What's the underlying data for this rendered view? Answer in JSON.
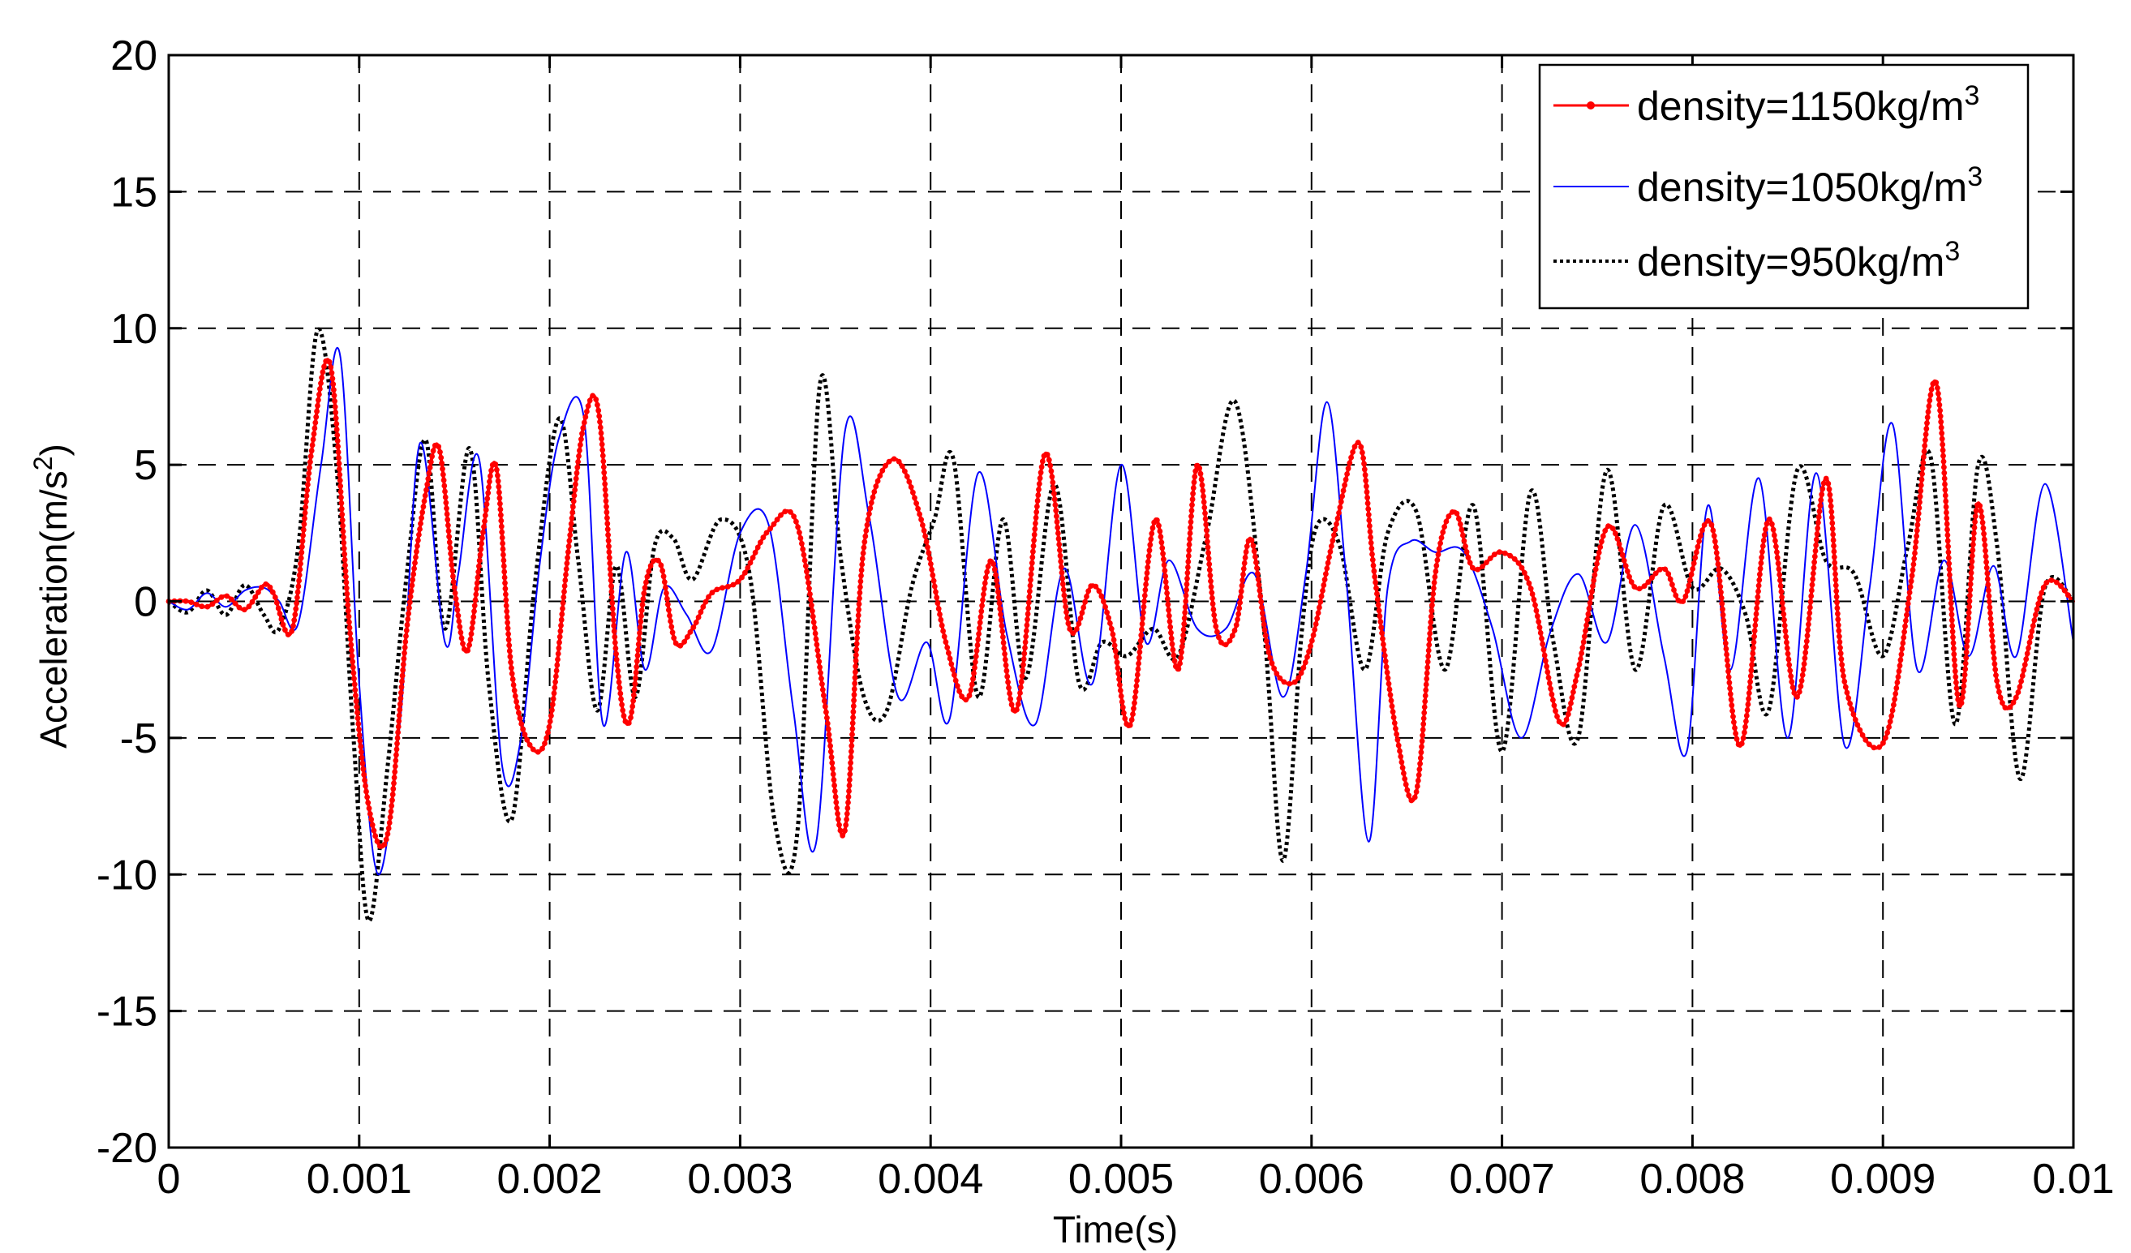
{
  "chart_data": {
    "type": "line",
    "xlabel": "Time(s)",
    "ylabel": "Acceleration(m/s",
    "ylabel_sup": "2",
    "ylabel_end": ")",
    "xlim": [
      0,
      0.01
    ],
    "ylim": [
      -20,
      20
    ],
    "grid": true,
    "legend_position": "top-right",
    "x_ticks": [
      0,
      0.001,
      0.002,
      0.003,
      0.004,
      0.005,
      0.006,
      0.007,
      0.008,
      0.009,
      0.01
    ],
    "x_tick_labels": [
      "0",
      "0.001",
      "0.002",
      "0.003",
      "0.004",
      "0.005",
      "0.006",
      "0.007",
      "0.008",
      "0.009",
      "0.01"
    ],
    "y_ticks": [
      -20,
      -15,
      -10,
      -5,
      0,
      5,
      10,
      15,
      20
    ],
    "y_tick_labels": [
      "-20",
      "-15",
      "-10",
      "-5",
      "0",
      "5",
      "10",
      "15",
      "20"
    ],
    "series": [
      {
        "name": "density=1150kg/m",
        "name_sup": "3",
        "color": "#ff0000",
        "style": "solid-markers",
        "x": [
          0,
          0.0001,
          0.0002,
          0.0003,
          0.0004,
          0.0005,
          0.00055,
          0.00065,
          0.00075,
          0.00085,
          0.00095,
          0.00105,
          0.00115,
          0.00125,
          0.00135,
          0.00142,
          0.0015,
          0.00157,
          0.00165,
          0.00172,
          0.0018,
          0.0019,
          0.002,
          0.0021,
          0.00218,
          0.00226,
          0.00235,
          0.00242,
          0.0025,
          0.00258,
          0.00266,
          0.00275,
          0.00285,
          0.003,
          0.00315,
          0.0033,
          0.00345,
          0.00355,
          0.00365,
          0.0038,
          0.00395,
          0.00408,
          0.0042,
          0.00432,
          0.00445,
          0.0046,
          0.00473,
          0.00485,
          0.00495,
          0.00505,
          0.00518,
          0.0053,
          0.0054,
          0.0055,
          0.0056,
          0.00568,
          0.00578,
          0.0059,
          0.006,
          0.00612,
          0.00625,
          0.00633,
          0.00645,
          0.00655,
          0.00665,
          0.00675,
          0.00685,
          0.007,
          0.00715,
          0.0073,
          0.0074,
          0.00755,
          0.0077,
          0.00785,
          0.00795,
          0.0081,
          0.00825,
          0.0084,
          0.00855,
          0.0087,
          0.0088,
          0.009,
          0.00915,
          0.00928,
          0.0094,
          0.0095,
          0.0096,
          0.0097,
          0.00985,
          0.01
        ],
        "values": [
          0,
          0,
          -0.2,
          0.2,
          -0.3,
          0.6,
          0.3,
          -1.0,
          5.5,
          8.6,
          -1.0,
          -7.5,
          -8.5,
          -1.0,
          4.0,
          5.6,
          0.5,
          -1.8,
          2.5,
          4.9,
          -2.5,
          -5.3,
          -4.5,
          2.0,
          6.5,
          6.8,
          -2.0,
          -4.4,
          0.5,
          1.4,
          -1.5,
          -1.0,
          0.3,
          0.8,
          2.6,
          2.8,
          -4.0,
          -8.4,
          2.0,
          5.2,
          3.0,
          -1.5,
          -3.5,
          1.5,
          -4.0,
          5.4,
          -1.0,
          0.6,
          -1.0,
          -4.5,
          3.0,
          -2.5,
          5.0,
          -1.0,
          -1.0,
          2.3,
          -2.0,
          -3.0,
          -1.5,
          2.5,
          5.8,
          1.0,
          -5.0,
          -7.0,
          1.0,
          3.3,
          1.2,
          1.8,
          0.5,
          -4.4,
          -2.5,
          2.7,
          0.5,
          1.2,
          0.0,
          2.8,
          -5.3,
          3.0,
          -3.5,
          4.5,
          -3.0,
          -5.2,
          0.8,
          8.0,
          -3.8,
          3.6,
          -3.0,
          -3.5,
          0.6,
          0
        ]
      },
      {
        "name": "density=1050kg/m",
        "name_sup": "3",
        "color": "#0000ff",
        "style": "thin",
        "x": [
          0,
          0.0001,
          0.0002,
          0.0003,
          0.0004,
          0.0005,
          0.00058,
          0.00068,
          0.0008,
          0.0009,
          0.001,
          0.0011,
          0.00122,
          0.00132,
          0.00145,
          0.00152,
          0.00163,
          0.00175,
          0.00185,
          0.00195,
          0.00205,
          0.00218,
          0.00228,
          0.0024,
          0.0025,
          0.0026,
          0.00272,
          0.00285,
          0.003,
          0.00315,
          0.00328,
          0.0034,
          0.00355,
          0.00368,
          0.00383,
          0.00398,
          0.0041,
          0.00425,
          0.0044,
          0.00455,
          0.0047,
          0.00485,
          0.005,
          0.00513,
          0.00525,
          0.0054,
          0.00555,
          0.0057,
          0.00585,
          0.00597,
          0.00608,
          0.00618,
          0.0063,
          0.0064,
          0.00652,
          0.00665,
          0.0068,
          0.00695,
          0.0071,
          0.00725,
          0.0074,
          0.00755,
          0.0077,
          0.00785,
          0.00797,
          0.00808,
          0.0082,
          0.00835,
          0.0085,
          0.00865,
          0.0088,
          0.00893,
          0.00905,
          0.00918,
          0.00932,
          0.00945,
          0.00958,
          0.0097,
          0.00985,
          0.01
        ],
        "values": [
          0,
          -0.3,
          0.3,
          -0.2,
          0.4,
          0.5,
          0,
          -0.8,
          5.0,
          9.0,
          -3.0,
          -10.0,
          -4.0,
          5.8,
          -1.5,
          1.0,
          5.2,
          -6.0,
          -5.0,
          1.5,
          6.0,
          6.7,
          -4.5,
          1.8,
          -2.5,
          0.5,
          -0.5,
          -1.8,
          2.5,
          2.8,
          -4.0,
          -8.8,
          6.2,
          3.0,
          -3.5,
          -1.5,
          -4.3,
          4.7,
          -1.2,
          -4.5,
          1.2,
          -3.0,
          5.0,
          -1.5,
          1.5,
          -1.0,
          -1.0,
          1.0,
          -3.5,
          1.0,
          7.3,
          1.0,
          -8.8,
          0.5,
          2.2,
          1.8,
          1.8,
          -1.0,
          -5.0,
          -1.2,
          1.0,
          -1.5,
          2.8,
          -2.0,
          -5.5,
          3.5,
          -2.5,
          4.5,
          -5.0,
          4.7,
          -5.3,
          0.5,
          6.5,
          -2.5,
          1.5,
          -2.0,
          1.3,
          -2.0,
          4.3,
          -1.5
        ]
      },
      {
        "name": "density=950kg/m",
        "name_sup": "3",
        "color": "#000000",
        "style": "dotted",
        "x": [
          0,
          0.0001,
          0.0002,
          0.0003,
          0.0004,
          0.0005,
          0.00058,
          0.00068,
          0.00078,
          0.00088,
          0.00097,
          0.00105,
          0.00115,
          0.00125,
          0.00135,
          0.00145,
          0.00158,
          0.00168,
          0.0018,
          0.00192,
          0.00205,
          0.00215,
          0.00225,
          0.00235,
          0.00245,
          0.00255,
          0.00265,
          0.00275,
          0.0029,
          0.00305,
          0.00318,
          0.0033,
          0.00342,
          0.00353,
          0.00365,
          0.00377,
          0.0039,
          0.00402,
          0.00412,
          0.00425,
          0.00438,
          0.0045,
          0.00465,
          0.00478,
          0.0049,
          0.00503,
          0.00517,
          0.0053,
          0.00545,
          0.0056,
          0.00575,
          0.00585,
          0.00595,
          0.00603,
          0.00615,
          0.00628,
          0.0064,
          0.00655,
          0.0067,
          0.00685,
          0.007,
          0.00715,
          0.00727,
          0.0074,
          0.00755,
          0.0077,
          0.00785,
          0.008,
          0.00815,
          0.00828,
          0.0084,
          0.00855,
          0.0087,
          0.00885,
          0.009,
          0.00913,
          0.00925,
          0.00938,
          0.0095,
          0.0096,
          0.00972,
          0.00985,
          0.01
        ],
        "values": [
          0,
          -0.4,
          0.4,
          -0.5,
          0.6,
          -0.5,
          -1.0,
          2.0,
          9.9,
          5.0,
          -5.0,
          -11.7,
          -6.0,
          1.0,
          5.9,
          -1.0,
          5.6,
          -3.0,
          -8.0,
          0.5,
          6.7,
          1.5,
          -4.0,
          1.3,
          -3.5,
          2.0,
          2.3,
          0.8,
          3.0,
          1.0,
          -8.0,
          -8.5,
          8.0,
          1.5,
          -3.5,
          -4.0,
          0.5,
          3.0,
          5.2,
          -3.5,
          3.0,
          -2.8,
          4.3,
          -3.0,
          -1.5,
          -2.0,
          -1.0,
          -2.0,
          2.5,
          7.3,
          -1.0,
          -9.5,
          -1.0,
          2.8,
          2.0,
          -2.5,
          2.5,
          3.3,
          -2.5,
          3.5,
          -5.5,
          4.0,
          -1.5,
          -5.0,
          4.8,
          -2.5,
          3.5,
          0.5,
          1.2,
          -0.5,
          -4.0,
          4.8,
          1.5,
          1.0,
          -2.0,
          2.0,
          5.3,
          -4.5,
          5.0,
          2.0,
          -6.5,
          0.5,
          0
        ]
      }
    ]
  }
}
